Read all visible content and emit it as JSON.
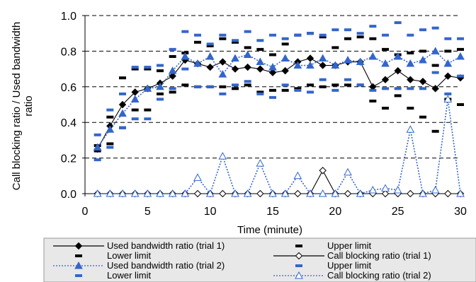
{
  "chart_data": {
    "type": "line",
    "xlabel": "Time (minute)",
    "ylabel_lines": [
      "Call blocking ratio / Used bandwidth",
      "ratio"
    ],
    "xlim": [
      0,
      30
    ],
    "ylim": [
      0,
      1.0
    ],
    "x_ticks": [
      0,
      5,
      10,
      15,
      20,
      25,
      30
    ],
    "x_tick_labels": [
      "0",
      "5",
      "10",
      "15",
      "20",
      "25",
      "30"
    ],
    "y_ticks": [
      0,
      0.2,
      0.4,
      0.6,
      0.8,
      1.0
    ],
    "y_tick_labels": [
      "0.0",
      "0.2",
      "0.4",
      "0.6",
      "0.8",
      "1.0"
    ],
    "grid": "horizontal dashed",
    "legend_position": "bottom",
    "x": [
      1,
      2,
      3,
      4,
      5,
      6,
      7,
      8,
      9,
      10,
      11,
      12,
      13,
      14,
      15,
      16,
      17,
      18,
      19,
      20,
      21,
      22,
      23,
      24,
      25,
      26,
      27,
      28,
      29,
      30
    ],
    "series": [
      {
        "name": "Used bandwidth ratio (trial 1)",
        "style": "black-diamond-line",
        "color": "#000000",
        "values": [
          0.25,
          0.38,
          0.5,
          0.57,
          0.59,
          0.62,
          0.66,
          0.75,
          0.73,
          0.71,
          0.74,
          0.7,
          0.71,
          0.7,
          0.68,
          0.69,
          0.74,
          0.76,
          0.72,
          0.72,
          0.74,
          0.74,
          0.6,
          0.64,
          0.69,
          0.64,
          0.63,
          0.59,
          0.66,
          0.65
        ]
      },
      {
        "name": "Upper limit",
        "style": "black-dash-marker",
        "color": "#000000",
        "values": [
          0.27,
          0.43,
          0.65,
          0.7,
          0.7,
          0.69,
          0.77,
          0.79,
          0.85,
          0.83,
          0.87,
          0.85,
          0.82,
          0.81,
          0.78,
          0.84,
          0.89,
          0.9,
          0.88,
          0.82,
          0.87,
          0.88,
          0.87,
          0.81,
          0.78,
          0.79,
          0.8,
          0.72,
          0.8,
          0.81
        ]
      },
      {
        "name": "Lower limit",
        "style": "black-dash-marker",
        "color": "#000000",
        "values": [
          0.24,
          0.28,
          0.37,
          0.47,
          0.47,
          0.56,
          0.57,
          0.61,
          0.6,
          0.6,
          0.6,
          0.59,
          0.61,
          0.57,
          0.58,
          0.58,
          0.59,
          0.61,
          0.6,
          0.61,
          0.61,
          0.61,
          0.52,
          0.48,
          0.55,
          0.48,
          0.43,
          0.35,
          0.53,
          0.5
        ]
      },
      {
        "name": "Call blocking ratio (trial 1)",
        "style": "black-open-diamond-line",
        "color": "#000000",
        "values": [
          0,
          0,
          0,
          0,
          0,
          0,
          0,
          0,
          0,
          0,
          0,
          0,
          0,
          0,
          0,
          0,
          0,
          0,
          0.13,
          0,
          0,
          0,
          0,
          0,
          0,
          0,
          0,
          0,
          0,
          0
        ]
      },
      {
        "name": "Used bandwidth ratio (trial 2)",
        "style": "blue-triangle-dotted",
        "color": "#3366cc",
        "values": [
          0.26,
          0.36,
          0.45,
          0.53,
          0.59,
          0.6,
          0.69,
          0.77,
          0.73,
          0.77,
          0.67,
          0.76,
          0.78,
          0.74,
          0.71,
          0.76,
          0.72,
          0.72,
          0.76,
          0.72,
          0.75,
          0.74,
          0.77,
          0.73,
          0.77,
          0.73,
          0.75,
          0.8,
          0.73,
          0.77
        ]
      },
      {
        "name": "Upper limit",
        "style": "blue-dash-marker",
        "color": "#3366cc",
        "values": [
          0.33,
          0.47,
          0.56,
          0.71,
          0.71,
          0.72,
          0.81,
          0.91,
          0.89,
          0.84,
          0.89,
          0.86,
          0.91,
          0.86,
          0.89,
          0.87,
          0.89,
          0.9,
          0.89,
          0.92,
          0.92,
          0.9,
          0.94,
          0.89,
          0.96,
          0.89,
          0.92,
          0.93,
          0.87,
          0.87
        ]
      },
      {
        "name": "Lower limit",
        "style": "blue-dash-marker",
        "color": "#3366cc",
        "values": [
          0.19,
          0.26,
          0.37,
          0.42,
          0.42,
          0.53,
          0.59,
          0.7,
          0.6,
          0.6,
          0.56,
          0.61,
          0.63,
          0.56,
          0.54,
          0.61,
          0.58,
          0.57,
          0.64,
          0.58,
          0.64,
          0.61,
          0.58,
          0.59,
          0.59,
          0.59,
          0.59,
          0.68,
          0.56,
          0.66
        ]
      },
      {
        "name": "Call blocking ratio (trial 2)",
        "style": "blue-open-triangle-dotted",
        "color": "#3366cc",
        "values": [
          0,
          0,
          0,
          0,
          0,
          0,
          0,
          0,
          0.09,
          0,
          0.21,
          0,
          0,
          0.17,
          0,
          0,
          0.1,
          0,
          0,
          0,
          0.12,
          0,
          0.02,
          0.03,
          0.02,
          0.36,
          0,
          0.02,
          0.53,
          0
        ]
      }
    ]
  }
}
